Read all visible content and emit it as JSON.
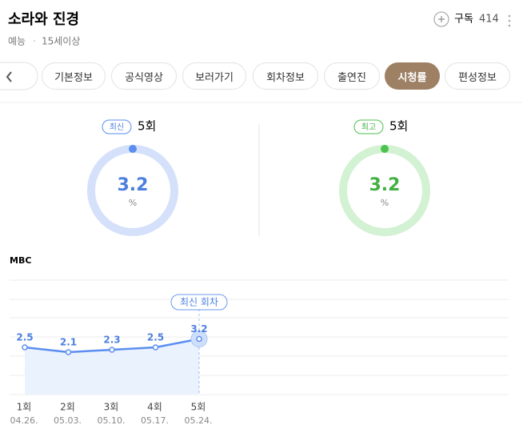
{
  "header": {
    "title": "소라와 진경",
    "subscribe": "구독",
    "subscribers": 414,
    "genre": "예능",
    "rating_age": "15세이상"
  },
  "tabs": [
    "기본정보",
    "공식영상",
    "보러가기",
    "회차정보",
    "출연진",
    "시청률",
    "편성정보"
  ],
  "selected_tab": 5,
  "gauges": [
    {
      "badge": "최신",
      "episode": "5회",
      "value": 3.2,
      "unit": "%",
      "ring_color": "#d5e1fa",
      "color": "#5b8ef0",
      "text_color": "#4d7fdf"
    },
    {
      "badge": "최고",
      "episode": "5회",
      "value": 3.2,
      "unit": "%",
      "ring_color": "#d3f1d3",
      "color": "#4ec24e",
      "text_color": "#43b043"
    }
  ],
  "chart_data": {
    "type": "line",
    "title": "MBC",
    "categories": [
      "1회",
      "2회",
      "3회",
      "4회",
      "5회"
    ],
    "dates": [
      "04.26.",
      "05.03.",
      "05.10.",
      "05.17.",
      "05.24."
    ],
    "series": [
      {
        "name": null,
        "color": "#5b8ef0",
        "values": [
          2.5,
          2.1,
          2.3,
          2.5,
          3.2
        ]
      }
    ],
    "annotation": "최신 회차"
  }
}
